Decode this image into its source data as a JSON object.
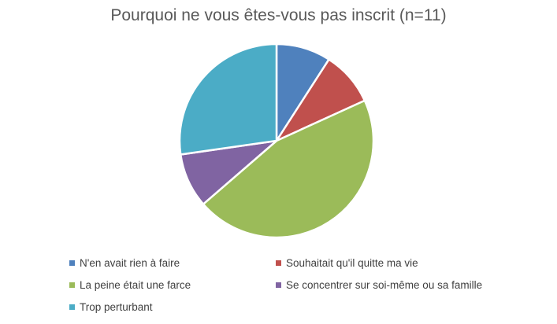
{
  "chart_data": {
    "type": "pie",
    "title": "Pourquoi ne vous êtes-vous pas inscrit (n=11)",
    "categories": [
      "N'en avait rien à faire",
      "Souhaitait qu'il quitte ma vie",
      "La peine était une farce",
      "Se concentrer sur soi-même ou sa famille",
      "Trop perturbant"
    ],
    "values": [
      1,
      1,
      5,
      1,
      3
    ],
    "colors": [
      "#4F81BD",
      "#C0504D",
      "#9BBB59",
      "#8064A2",
      "#4BACC6"
    ],
    "legend_position": "bottom"
  }
}
